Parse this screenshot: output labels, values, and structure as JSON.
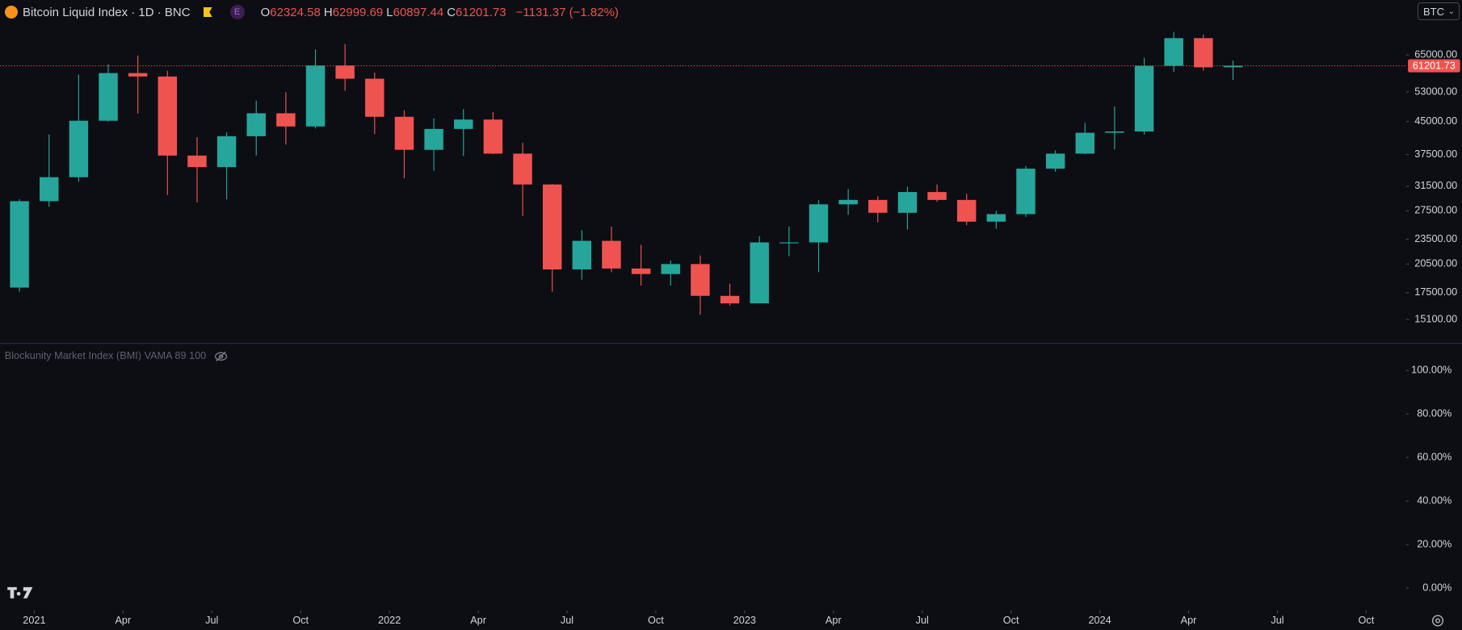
{
  "chart_data": {
    "type": "candlestick",
    "title": "Bitcoin Liquid Index · 1D · BNC",
    "badge": "E",
    "legend_ohlc": [
      {
        "label": "O",
        "value": 62324.58
      },
      {
        "label": "H",
        "value": 62999.69
      },
      {
        "label": "L",
        "value": 60897.44
      },
      {
        "label": "C",
        "value": 61201.73
      }
    ],
    "change": "−1131.37 (−1.82%)",
    "currency": "BTC",
    "last_price": 61201.73,
    "up_color": "#26a69a",
    "down_color": "#ef5350",
    "log_scale": true,
    "x": [
      "2020-12",
      "2021-01",
      "2021-02",
      "2021-03",
      "2021-04",
      "2021-05",
      "2021-06",
      "2021-07",
      "2021-08",
      "2021-09",
      "2021-10",
      "2021-11",
      "2021-12",
      "2022-01",
      "2022-02",
      "2022-03",
      "2022-04",
      "2022-05",
      "2022-06",
      "2022-07",
      "2022-08",
      "2022-09",
      "2022-10",
      "2022-11",
      "2022-12",
      "2023-01",
      "2023-02",
      "2023-03",
      "2023-04",
      "2023-05",
      "2023-06",
      "2023-07",
      "2023-08",
      "2023-09",
      "2023-10",
      "2023-11",
      "2023-12",
      "2024-01",
      "2024-02",
      "2024-03",
      "2024-04",
      "2024-05"
    ],
    "open": [
      18000,
      29000,
      33100,
      45200,
      58800,
      57700,
      37300,
      35000,
      41500,
      47100,
      43800,
      61300,
      57000,
      46200,
      38500,
      43200,
      45500,
      37700,
      31800,
      19900,
      23300,
      20000,
      19400,
      20500,
      17200,
      16500,
      23100,
      23100,
      28500,
      29200,
      27200,
      30500,
      29200,
      25900,
      27000,
      34700,
      37700,
      42300,
      42600,
      61200,
      71300,
      60700
    ],
    "high": [
      29300,
      41900,
      58300,
      61700,
      64800,
      59500,
      41300,
      42400,
      50500,
      52900,
      67000,
      69000,
      59000,
      47900,
      45800,
      48200,
      47400,
      40000,
      31900,
      24700,
      25200,
      22800,
      20900,
      21500,
      18400,
      23900,
      25200,
      29200,
      31000,
      29800,
      31400,
      31800,
      30200,
      27500,
      35200,
      38400,
      44700,
      48900,
      64000,
      73800,
      72700,
      63000
    ],
    "low": [
      17600,
      28100,
      32300,
      45000,
      47000,
      30000,
      28800,
      29300,
      37300,
      39600,
      43300,
      53300,
      42000,
      32900,
      34300,
      37200,
      37600,
      26700,
      17600,
      18800,
      19600,
      18200,
      18200,
      15500,
      16300,
      16500,
      21400,
      19600,
      26900,
      25800,
      24800,
      28900,
      25400,
      24900,
      26600,
      34100,
      37600,
      38600,
      41900,
      59200,
      59600,
      56600
    ],
    "close": [
      29000,
      33100,
      45200,
      58800,
      57700,
      37300,
      35000,
      41500,
      47100,
      43800,
      61300,
      57000,
      46200,
      38500,
      43200,
      45500,
      37700,
      31800,
      19900,
      23300,
      20000,
      19400,
      20500,
      17200,
      16500,
      23100,
      23100,
      28500,
      29200,
      27200,
      30500,
      29200,
      25900,
      27000,
      34700,
      37700,
      42300,
      42600,
      61200,
      71300,
      60700,
      61201.73
    ],
    "xlim": [
      "2020-12",
      "2024-11"
    ],
    "xticks": [
      {
        "value": "2021-01",
        "label": "2021"
      },
      {
        "value": "2021-04",
        "label": "Apr"
      },
      {
        "value": "2021-07",
        "label": "Jul"
      },
      {
        "value": "2021-10",
        "label": "Oct"
      },
      {
        "value": "2022-01",
        "label": "2022"
      },
      {
        "value": "2022-04",
        "label": "Apr"
      },
      {
        "value": "2022-07",
        "label": "Jul"
      },
      {
        "value": "2022-10",
        "label": "Oct"
      },
      {
        "value": "2023-01",
        "label": "2023"
      },
      {
        "value": "2023-04",
        "label": "Apr"
      },
      {
        "value": "2023-07",
        "label": "Jul"
      },
      {
        "value": "2023-10",
        "label": "Oct"
      },
      {
        "value": "2024-01",
        "label": "2024"
      },
      {
        "value": "2024-04",
        "label": "Apr"
      },
      {
        "value": "2024-07",
        "label": "Jul"
      },
      {
        "value": "2024-10",
        "label": "Oct"
      }
    ],
    "ylim": [
      13300,
      88000
    ],
    "yticks": [
      {
        "value": 15100,
        "label": "15100.00"
      },
      {
        "value": 17500,
        "label": "17500.00"
      },
      {
        "value": 20500,
        "label": "20500.00"
      },
      {
        "value": 23500,
        "label": "23500.00"
      },
      {
        "value": 27500,
        "label": "27500.00"
      },
      {
        "value": 31500,
        "label": "31500.00"
      },
      {
        "value": 37500,
        "label": "37500.00"
      },
      {
        "value": 45000,
        "label": "45000.00"
      },
      {
        "value": 53000,
        "label": "53000.00"
      },
      {
        "value": 65000,
        "label": "65000.00"
      }
    ],
    "indicator": {
      "title": "Blockunity Market Index (BMI) VAMA 89 100",
      "ylim": [
        -9.8,
        112.4
      ],
      "yticks": [
        {
          "value": 100,
          "label": "100.00%"
        },
        {
          "value": 80,
          "label": "80.00%"
        },
        {
          "value": 60,
          "label": "60.00%"
        },
        {
          "value": 40,
          "label": "40.00%"
        },
        {
          "value": 20,
          "label": "20.00%"
        },
        {
          "value": 0,
          "label": "0.00%"
        }
      ]
    }
  }
}
